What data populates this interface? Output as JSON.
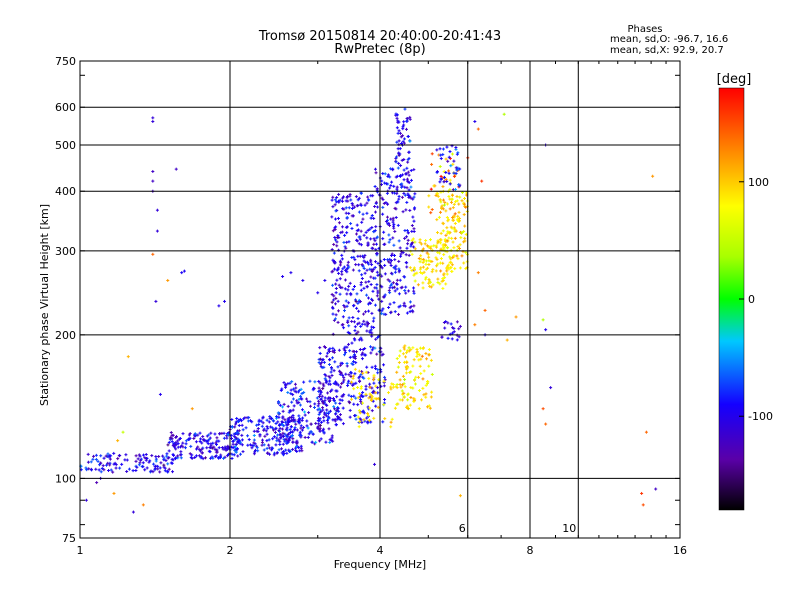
{
  "chart_data": {
    "type": "scatter",
    "title": "Tromsø 20150814 20:40:00-20:41:43",
    "subtitle": "RwPretec (8p)",
    "xlabel": "Frequency [MHz]",
    "ylabel": "Stationary phase Virtual Height [km]",
    "x_scale": "log2",
    "y_scale": "log",
    "xlim": [
      1,
      16
    ],
    "ylim": [
      75,
      750
    ],
    "grid": true,
    "x_ticks": [
      1,
      2,
      4,
      8,
      16
    ],
    "x_tick_labels": [
      "1",
      "2",
      "4",
      "8",
      "16"
    ],
    "x_gridlines": [
      2,
      4,
      6,
      8,
      10
    ],
    "x_minor_labels": [
      {
        "x": 6,
        "label": "6"
      },
      {
        "x": 10,
        "label": "10"
      }
    ],
    "y_ticks": [
      75,
      100,
      200,
      300,
      400,
      500,
      600,
      750
    ],
    "y_tick_labels": [
      "75",
      "100",
      "200",
      "300",
      "400",
      "500",
      "600",
      "750"
    ],
    "y_gridlines": [
      100,
      200,
      300,
      400,
      500,
      600
    ],
    "stats": {
      "heading": "Phases",
      "line_o": "mean, sd,O: -96.7, 16.6",
      "line_x": "mean, sd,X: 92.9, 20.7"
    },
    "colorbar": {
      "label": "[deg]",
      "min": -180,
      "max": 180,
      "ticks": [
        100,
        0,
        -100
      ],
      "tick_labels": [
        "100",
        "0",
        "-100"
      ]
    },
    "clusters": [
      {
        "fmin": 1.0,
        "fmax": 1.55,
        "hmin": 103,
        "hmax": 113,
        "n": 120,
        "phase": -100,
        "sd": 20
      },
      {
        "fmin": 1.5,
        "fmax": 2.1,
        "hmin": 110,
        "hmax": 125,
        "n": 180,
        "phase": -100,
        "sd": 20
      },
      {
        "fmin": 2.0,
        "fmax": 2.8,
        "hmin": 112,
        "hmax": 135,
        "n": 220,
        "phase": -95,
        "sd": 20
      },
      {
        "fmin": 2.5,
        "fmax": 3.3,
        "hmin": 118,
        "hmax": 160,
        "n": 200,
        "phase": -95,
        "sd": 22
      },
      {
        "fmin": 3.0,
        "fmax": 3.4,
        "hmin": 130,
        "hmax": 190,
        "n": 120,
        "phase": -105,
        "sd": 20
      },
      {
        "fmin": 3.2,
        "fmax": 3.9,
        "hmin": 200,
        "hmax": 400,
        "n": 300,
        "phase": -100,
        "sd": 18
      },
      {
        "fmin": 3.4,
        "fmax": 4.1,
        "hmin": 130,
        "hmax": 200,
        "n": 150,
        "phase": -100,
        "sd": 20
      },
      {
        "fmin": 3.9,
        "fmax": 4.7,
        "hmin": 220,
        "hmax": 450,
        "n": 260,
        "phase": -100,
        "sd": 18
      },
      {
        "fmin": 4.3,
        "fmax": 4.6,
        "hmin": 400,
        "hmax": 600,
        "n": 70,
        "phase": -100,
        "sd": 20
      },
      {
        "fmin": 3.5,
        "fmax": 4.3,
        "hmin": 128,
        "hmax": 170,
        "n": 60,
        "phase": 95,
        "sd": 15
      },
      {
        "fmin": 4.3,
        "fmax": 5.1,
        "hmin": 140,
        "hmax": 190,
        "n": 110,
        "phase": 90,
        "sd": 20
      },
      {
        "fmin": 4.6,
        "fmax": 5.5,
        "hmin": 250,
        "hmax": 320,
        "n": 110,
        "phase": 92,
        "sd": 18
      },
      {
        "fmin": 5.2,
        "fmax": 6.0,
        "hmin": 270,
        "hmax": 400,
        "n": 140,
        "phase": 95,
        "sd": 20
      },
      {
        "fmin": 5.0,
        "fmax": 5.8,
        "hmin": 360,
        "hmax": 480,
        "n": 40,
        "phase": 120,
        "sd": 30
      },
      {
        "fmin": 5.2,
        "fmax": 5.8,
        "hmin": 400,
        "hmax": 500,
        "n": 40,
        "phase": -90,
        "sd": 20
      },
      {
        "fmin": 5.3,
        "fmax": 5.9,
        "hmin": 195,
        "hmax": 215,
        "n": 20,
        "phase": -110,
        "sd": 15
      }
    ],
    "points": [
      {
        "x": 1.4,
        "y": 560,
        "phase": -110
      },
      {
        "x": 1.4,
        "y": 570,
        "phase": -110
      },
      {
        "x": 1.4,
        "y": 440,
        "phase": -120
      },
      {
        "x": 1.4,
        "y": 420,
        "phase": -120
      },
      {
        "x": 1.4,
        "y": 400,
        "phase": -120
      },
      {
        "x": 1.56,
        "y": 445,
        "phase": -120
      },
      {
        "x": 1.43,
        "y": 365,
        "phase": -110
      },
      {
        "x": 1.43,
        "y": 330,
        "phase": -110
      },
      {
        "x": 1.4,
        "y": 295,
        "phase": 140
      },
      {
        "x": 1.42,
        "y": 235,
        "phase": -110
      },
      {
        "x": 1.6,
        "y": 270,
        "phase": -95
      },
      {
        "x": 1.62,
        "y": 272,
        "phase": -95
      },
      {
        "x": 1.9,
        "y": 230,
        "phase": -100
      },
      {
        "x": 1.95,
        "y": 235,
        "phase": -100
      },
      {
        "x": 1.5,
        "y": 260,
        "phase": 120
      },
      {
        "x": 1.25,
        "y": 180,
        "phase": 110
      },
      {
        "x": 1.45,
        "y": 150,
        "phase": -100
      },
      {
        "x": 1.68,
        "y": 140,
        "phase": 120
      },
      {
        "x": 1.22,
        "y": 125,
        "phase": 50
      },
      {
        "x": 1.19,
        "y": 120,
        "phase": 110
      },
      {
        "x": 1.1,
        "y": 100,
        "phase": -110
      },
      {
        "x": 1.08,
        "y": 98,
        "phase": -130
      },
      {
        "x": 1.17,
        "y": 93,
        "phase": 120
      },
      {
        "x": 1.28,
        "y": 85,
        "phase": -110
      },
      {
        "x": 1.03,
        "y": 90,
        "phase": -110
      },
      {
        "x": 1.34,
        "y": 88,
        "phase": 130
      },
      {
        "x": 2.65,
        "y": 270,
        "phase": -100
      },
      {
        "x": 2.8,
        "y": 260,
        "phase": -100
      },
      {
        "x": 2.55,
        "y": 265,
        "phase": -100
      },
      {
        "x": 3.0,
        "y": 245,
        "phase": -100
      },
      {
        "x": 3.1,
        "y": 260,
        "phase": -100
      },
      {
        "x": 6.3,
        "y": 540,
        "phase": 140
      },
      {
        "x": 6.2,
        "y": 560,
        "phase": -100
      },
      {
        "x": 7.1,
        "y": 580,
        "phase": 40
      },
      {
        "x": 6.0,
        "y": 470,
        "phase": 160
      },
      {
        "x": 6.4,
        "y": 420,
        "phase": 160
      },
      {
        "x": 8.6,
        "y": 500,
        "phase": -110
      },
      {
        "x": 6.3,
        "y": 270,
        "phase": 130
      },
      {
        "x": 6.5,
        "y": 225,
        "phase": 140
      },
      {
        "x": 6.2,
        "y": 210,
        "phase": 130
      },
      {
        "x": 7.2,
        "y": 195,
        "phase": 110
      },
      {
        "x": 7.5,
        "y": 218,
        "phase": 120
      },
      {
        "x": 8.5,
        "y": 215,
        "phase": 40
      },
      {
        "x": 8.6,
        "y": 205,
        "phase": -100
      },
      {
        "x": 8.5,
        "y": 140,
        "phase": 150
      },
      {
        "x": 8.6,
        "y": 130,
        "phase": 140
      },
      {
        "x": 8.8,
        "y": 155,
        "phase": -110
      },
      {
        "x": 6.5,
        "y": 200,
        "phase": -100
      },
      {
        "x": 5.8,
        "y": 92,
        "phase": 110
      },
      {
        "x": 13.4,
        "y": 93,
        "phase": 160
      },
      {
        "x": 13.5,
        "y": 88,
        "phase": 150
      },
      {
        "x": 14.3,
        "y": 95,
        "phase": -120
      },
      {
        "x": 13.7,
        "y": 125,
        "phase": 140
      },
      {
        "x": 14.1,
        "y": 430,
        "phase": 120
      },
      {
        "x": 3.9,
        "y": 107,
        "phase": -110
      }
    ]
  }
}
